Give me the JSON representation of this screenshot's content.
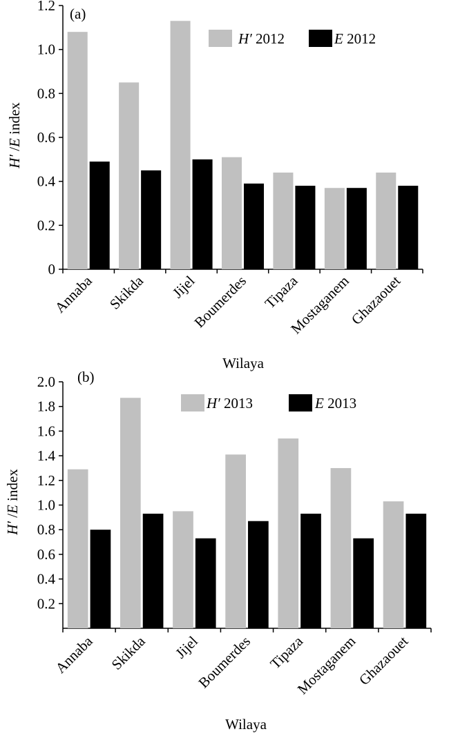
{
  "figure": {
    "xlabel": "Wilaya",
    "ylabel_parts": [
      "H′",
      " /",
      "E",
      " index"
    ]
  },
  "chart_data": [
    {
      "type": "bar",
      "panel": "(a)",
      "categories": [
        "Annaba",
        "Skikda",
        "Jijel",
        "Boumerdes",
        "Tipaza",
        "Mostaganem",
        "Ghazaouet"
      ],
      "series": [
        {
          "name": "H′ 2012",
          "name_parts": [
            "H′",
            " 2012"
          ],
          "color": "#c0c0c0",
          "values": [
            1.08,
            0.85,
            1.13,
            0.51,
            0.44,
            0.37,
            0.44
          ]
        },
        {
          "name": "E 2012",
          "name_parts": [
            "E",
            " 2012"
          ],
          "color": "#000000",
          "values": [
            0.49,
            0.45,
            0.5,
            0.39,
            0.38,
            0.37,
            0.38
          ]
        }
      ],
      "xlabel": "Wilaya",
      "ylabel": "H′ /E index",
      "ylim": [
        0,
        1.2
      ],
      "yticks": [
        "0",
        "0.2",
        "0.4",
        "0.6",
        "0.8",
        "1.0",
        "1.2"
      ],
      "ytick_values": [
        0,
        0.2,
        0.4,
        0.6,
        0.8,
        1.0,
        1.2
      ],
      "grid": false,
      "legend": "top-right"
    },
    {
      "type": "bar",
      "panel": "(b)",
      "categories": [
        "Annaba",
        "Skikda",
        "Jijel",
        "Boumerdes",
        "Tipaza",
        "Mostaganem",
        "Ghazaouet"
      ],
      "series": [
        {
          "name": "H′ 2013",
          "name_parts": [
            "H′",
            " 2013"
          ],
          "color": "#c0c0c0",
          "values": [
            1.29,
            1.87,
            0.95,
            1.41,
            1.54,
            1.3,
            1.03
          ]
        },
        {
          "name": "E 2013",
          "name_parts": [
            "E",
            " 2013"
          ],
          "color": "#000000",
          "values": [
            0.8,
            0.93,
            0.73,
            0.87,
            0.93,
            0.73,
            0.93
          ]
        }
      ],
      "xlabel": "Wilaya",
      "ylabel": "H′ /E index",
      "ylim": [
        0,
        2.0
      ],
      "yticks": [
        "0.2",
        "0.4",
        "0.6",
        "0.8",
        "1.0",
        "1.2",
        "1.4",
        "1.6",
        "1.8",
        "2.0"
      ],
      "ytick_values": [
        0.2,
        0.4,
        0.6,
        0.8,
        1.0,
        1.2,
        1.4,
        1.6,
        1.8,
        2.0
      ],
      "grid": false,
      "legend": "top-right"
    }
  ]
}
